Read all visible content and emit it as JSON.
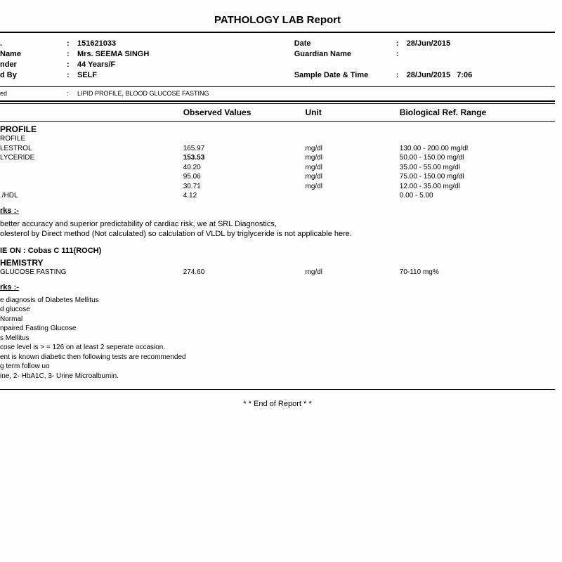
{
  "title": "PATHOLOGY LAB Report",
  "patient": {
    "left": [
      {
        "label": ".",
        "value": "151621033"
      },
      {
        "label": "Name",
        "value": "Mrs. SEEMA SINGH"
      },
      {
        "label": "nder",
        "value": "44 Years/F"
      },
      {
        "label": "d By",
        "value": "SELF"
      }
    ],
    "right": [
      {
        "label": "Date",
        "value": "28/Jun/2015"
      },
      {
        "label": "Guardian Name",
        "value": ""
      },
      {
        "label": "",
        "value": ""
      },
      {
        "label": "Sample Date & Time",
        "value": "28/Jun/2015   7:06"
      }
    ]
  },
  "ordered": {
    "label": "ed",
    "value": "LIPID PROFILE, BLOOD GLUCOSE FASTING"
  },
  "columns": {
    "obs": "Observed Values",
    "unit": "Unit",
    "ref": "Biological Ref. Range"
  },
  "sec1": {
    "title": "PROFILE",
    "subtitle": "ROFILE",
    "rows": [
      {
        "name": "LESTROL",
        "obs": "165.97",
        "unit": "mg/dl",
        "ref": "130.00 - 200.00 mg/dl",
        "obs_bold": false
      },
      {
        "name": "LYCERIDE",
        "obs": "153.53",
        "unit": "mg/dl",
        "ref": "50.00 - 150.00 mg/dl",
        "obs_bold": true
      },
      {
        "name": "",
        "obs": "40.20",
        "unit": "mg/dl",
        "ref": "35.00 - 55.00 mg/dl",
        "obs_bold": false
      },
      {
        "name": "",
        "obs": "95.06",
        "unit": "mg/dl",
        "ref": "75.00 - 150.00 mg/dl",
        "obs_bold": false
      },
      {
        "name": "",
        "obs": "30.71",
        "unit": "mg/dl",
        "ref": "12.00 - 35.00 mg/dl",
        "obs_bold": false
      },
      {
        "name": "./HDL",
        "obs": "4.12",
        "unit": "",
        "ref": "0.00 - 5.00",
        "obs_bold": false
      }
    ]
  },
  "remarks1": {
    "label": "rks :-",
    "lines": [
      "better accuracy and superior predictability of cardiac risk, we at SRL Diagnostics,",
      "olesterol by Direct method (Not calculated) so calculation of VLDL by triglyceride is not applicable here."
    ]
  },
  "equipment": "IE ON : Cobas  C 111(ROCH)",
  "sec2": {
    "title": "HEMISTRY",
    "rows": [
      {
        "name": "GLUCOSE FASTING",
        "obs": "274.60",
        "unit": "mg/dl",
        "ref": "70-110 mg%",
        "obs_bold": false
      }
    ]
  },
  "remarks2": {
    "label": "rks :-",
    "lines": [
      "e diagnosis of Diabetes Mellitus",
      "d glucose",
      "Normal",
      "npaired Fasting Glucose",
      "s Mellitus",
      "cose level is > = 126 on at least 2 seperate occasion.",
      "ent is known diabetic then following tests are recommended",
      "g term follow uo",
      "ine, 2- HbA1C, 3- Urine Microalbumin."
    ]
  },
  "end": "* * End of Report * *"
}
